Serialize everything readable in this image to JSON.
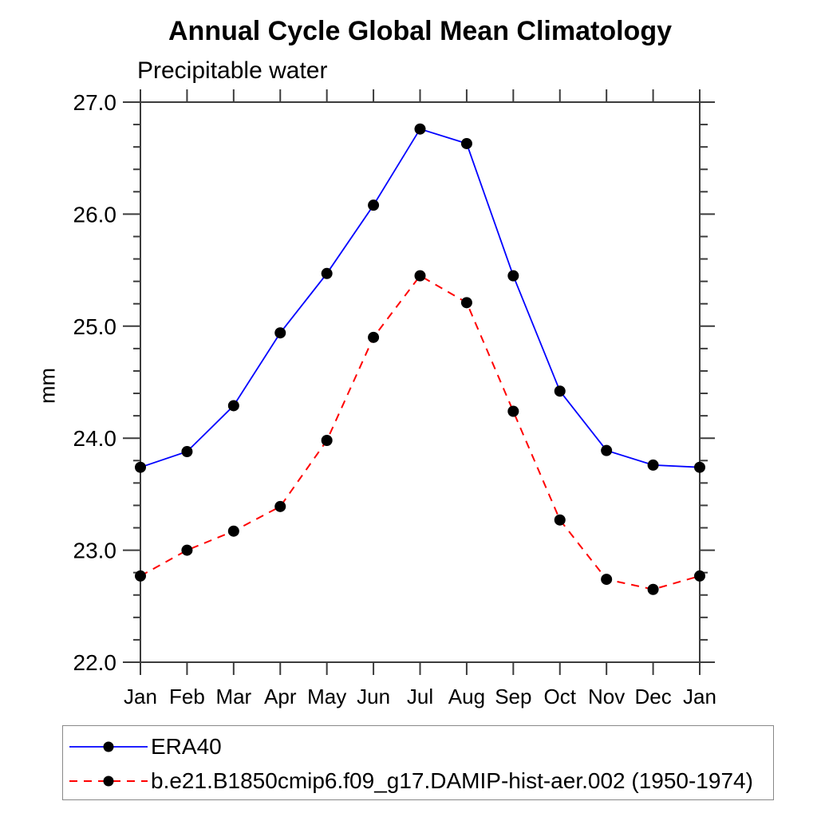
{
  "header": {
    "title": "Annual Cycle Global Mean Climatology",
    "subtitle": "Precipitable water"
  },
  "chart_data": {
    "type": "line",
    "title": "Annual Cycle Global Mean Climatology",
    "subtitle": "Precipitable water",
    "xlabel": "",
    "ylabel": "mm",
    "categories": [
      "Jan",
      "Feb",
      "Mar",
      "Apr",
      "May",
      "Jun",
      "Jul",
      "Aug",
      "Sep",
      "Oct",
      "Nov",
      "Dec",
      "Jan"
    ],
    "ylim": [
      22.0,
      27.0
    ],
    "ytick_major": 1.0,
    "ytick_minor": 0.2,
    "ytick_labels": [
      "22.0",
      "23.0",
      "24.0",
      "25.0",
      "26.0",
      "27.0"
    ],
    "grid": false,
    "legend_position": "bottom-left-box",
    "series": [
      {
        "name": "ERA40",
        "color": "#0000ff",
        "style": "solid",
        "marker": "circle",
        "marker_color": "#000000",
        "values": [
          23.74,
          23.88,
          24.29,
          24.94,
          25.47,
          26.08,
          26.76,
          26.63,
          25.45,
          24.42,
          23.89,
          23.76,
          23.74
        ]
      },
      {
        "name": "b.e21.B1850cmip6.f09_g17.DAMIP-hist-aer.002 (1950-1974)",
        "color": "#ff0000",
        "style": "dashed",
        "marker": "circle",
        "marker_color": "#000000",
        "values": [
          22.77,
          23.0,
          23.17,
          23.39,
          23.98,
          24.9,
          25.45,
          25.21,
          24.24,
          23.27,
          22.74,
          22.65,
          22.77
        ]
      }
    ]
  },
  "colors": {
    "axis": "#3c3c3c",
    "text": "#000000",
    "legend_border": "#888888",
    "background": "#ffffff"
  }
}
